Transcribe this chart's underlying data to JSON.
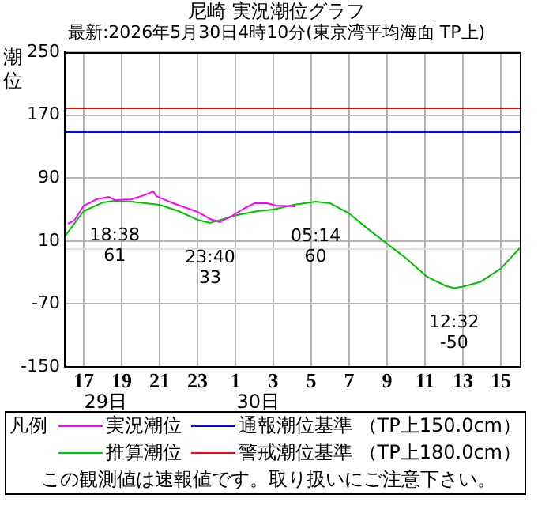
{
  "chart_data": {
    "type": "line",
    "title": "尼崎 実況潮位グラフ",
    "subtitle": "最新:2026年5月30日4時10分(東京湾平均海面 TP上)",
    "ylabel": "潮位",
    "legend_title": "凡例",
    "legend": "bottom",
    "grid": true,
    "marker": "none",
    "line_style": "solid",
    "xlim": [
      "2026-05-29T16:00",
      "2026-05-30T16:00"
    ],
    "xticks": [
      {
        "value": "2026-05-29T17:00",
        "label": "17"
      },
      {
        "value": "2026-05-29T19:00",
        "label": "19"
      },
      {
        "value": "2026-05-29T21:00",
        "label": "21"
      },
      {
        "value": "2026-05-29T23:00",
        "label": "23"
      },
      {
        "value": "2026-05-30T01:00",
        "label": "1"
      },
      {
        "value": "2026-05-30T03:00",
        "label": "3"
      },
      {
        "value": "2026-05-30T05:00",
        "label": "5"
      },
      {
        "value": "2026-05-30T07:00",
        "label": "7"
      },
      {
        "value": "2026-05-30T09:00",
        "label": "9"
      },
      {
        "value": "2026-05-30T11:00",
        "label": "11"
      },
      {
        "value": "2026-05-30T13:00",
        "label": "13"
      },
      {
        "value": "2026-05-30T15:00",
        "label": "15"
      }
    ],
    "ylim": [
      -150,
      250
    ],
    "yticks": [
      -150,
      -70,
      10,
      90,
      170,
      250
    ],
    "series": [
      {
        "name": "実況潮位",
        "color": "#ff00ff",
        "x": [
          "2026-05-29T16:10",
          "2026-05-29T16:30",
          "2026-05-29T17:00",
          "2026-05-29T17:40",
          "2026-05-29T18:20",
          "2026-05-29T18:40",
          "2026-05-29T19:30",
          "2026-05-29T20:10",
          "2026-05-29T20:40",
          "2026-05-29T20:50",
          "2026-05-29T21:50",
          "2026-05-29T23:00",
          "2026-05-29T23:40",
          "2026-05-30T00:10",
          "2026-05-30T00:50",
          "2026-05-30T01:30",
          "2026-05-30T02:00",
          "2026-05-30T02:40",
          "2026-05-30T03:10",
          "2026-05-30T04:10"
        ],
        "values": [
          32,
          36,
          55,
          63,
          66,
          62,
          63,
          68,
          73,
          67,
          57,
          47,
          38,
          34,
          42,
          52,
          58,
          58,
          55,
          54
        ]
      },
      {
        "name": "推算潮位",
        "color": "#00c000",
        "x": [
          "2026-05-29T16:00",
          "2026-05-29T17:00",
          "2026-05-29T18:00",
          "2026-05-29T18:38",
          "2026-05-29T19:30",
          "2026-05-29T21:00",
          "2026-05-29T22:00",
          "2026-05-29T23:00",
          "2026-05-29T23:40",
          "2026-05-30T01:05",
          "2026-05-30T02:10",
          "2026-05-30T03:00",
          "2026-05-30T04:05",
          "2026-05-30T05:14",
          "2026-05-30T06:00",
          "2026-05-30T07:00",
          "2026-05-30T08:00",
          "2026-05-30T09:05",
          "2026-05-30T10:00",
          "2026-05-30T11:05",
          "2026-05-30T12:05",
          "2026-05-30T12:32",
          "2026-05-30T13:00",
          "2026-05-30T13:55",
          "2026-05-30T15:00",
          "2026-05-30T16:00"
        ],
        "values": [
          16,
          48,
          59,
          61,
          60,
          56,
          48,
          37,
          33,
          43,
          48,
          50,
          56,
          60,
          58,
          45,
          25,
          5,
          -12,
          -35,
          -47,
          -50,
          -48,
          -42,
          -25,
          1
        ]
      }
    ],
    "ref_lines": [
      {
        "axis": "y",
        "value": 150,
        "label": "通報潮位基準 （TP上150.0cm）",
        "color": "#0000ff"
      },
      {
        "axis": "y",
        "value": 180,
        "label": "警戒潮位基準 （TP上180.0cm）",
        "color": "#ff0000"
      },
      {
        "axis": "y",
        "value": 0,
        "color": "#e0e0e0"
      }
    ],
    "annotations": [
      {
        "text": "18:38\n61",
        "x": "2026-05-29T18:38",
        "y": 61
      },
      {
        "text": "23:40\n33",
        "x": "2026-05-29T23:40",
        "y": 33
      },
      {
        "text": "05:14\n60",
        "x": "2026-05-30T05:14",
        "y": 60
      },
      {
        "text": "12:32\n-50",
        "x": "2026-05-30T12:32",
        "y": -50
      },
      "29日",
      "30日",
      "この観測値は速報値です。取り扱いにご注意下さい。"
    ]
  }
}
